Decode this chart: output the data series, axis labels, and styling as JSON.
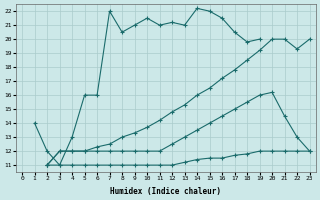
{
  "xlabel": "Humidex (Indice chaleur)",
  "bg_color": "#cce8e8",
  "grid_color": "#aacccc",
  "line_color": "#1a6b6b",
  "xlim": [
    -0.5,
    23.5
  ],
  "ylim": [
    10.5,
    22.5
  ],
  "xticks": [
    0,
    1,
    2,
    3,
    4,
    5,
    6,
    7,
    8,
    9,
    10,
    11,
    12,
    13,
    14,
    15,
    16,
    17,
    18,
    19,
    20,
    21,
    22,
    23
  ],
  "yticks": [
    11,
    12,
    13,
    14,
    15,
    16,
    17,
    18,
    19,
    20,
    21,
    22
  ],
  "curve1_x": [
    1,
    2,
    3,
    4,
    5,
    6,
    7,
    8,
    9,
    10,
    11,
    12,
    13,
    14,
    15,
    16,
    17,
    18,
    19
  ],
  "curve1_y": [
    14,
    12,
    11,
    13,
    16,
    16,
    22,
    20.5,
    21,
    21.5,
    21,
    21.2,
    21,
    22.2,
    22.0,
    21.5,
    20.5,
    19.8,
    20
  ],
  "curve2_x": [
    2,
    3,
    4,
    5,
    6,
    7,
    8,
    9,
    10,
    11,
    12,
    13,
    14,
    15,
    16,
    17,
    18,
    19,
    20,
    21,
    22,
    23
  ],
  "curve2_y": [
    11,
    11,
    11,
    11,
    11,
    11,
    11,
    11,
    11,
    11,
    11,
    11.2,
    11.4,
    11.5,
    11.5,
    11.7,
    11.8,
    12.0,
    12.0,
    12.0,
    12.0,
    12.0
  ],
  "curve3_x": [
    2,
    3,
    4,
    5,
    6,
    7,
    8,
    9,
    10,
    11,
    12,
    13,
    14,
    15,
    16,
    17,
    18,
    19,
    20,
    21,
    22,
    23
  ],
  "curve3_y": [
    11,
    12,
    12,
    12,
    12.3,
    12.5,
    13,
    13.3,
    13.7,
    14.2,
    14.8,
    15.3,
    16,
    16.5,
    17.2,
    17.8,
    18.5,
    19.2,
    20,
    20,
    19.3,
    20
  ],
  "curve4_x": [
    2,
    3,
    4,
    5,
    6,
    7,
    8,
    9,
    10,
    11,
    12,
    13,
    14,
    15,
    16,
    17,
    18,
    19,
    20,
    21,
    22,
    23
  ],
  "curve4_y": [
    11,
    12,
    12,
    12,
    12,
    12,
    12,
    12,
    12,
    12,
    12.5,
    13,
    13.5,
    14,
    14.5,
    15,
    15.5,
    16,
    16.2,
    14.5,
    13,
    12
  ]
}
